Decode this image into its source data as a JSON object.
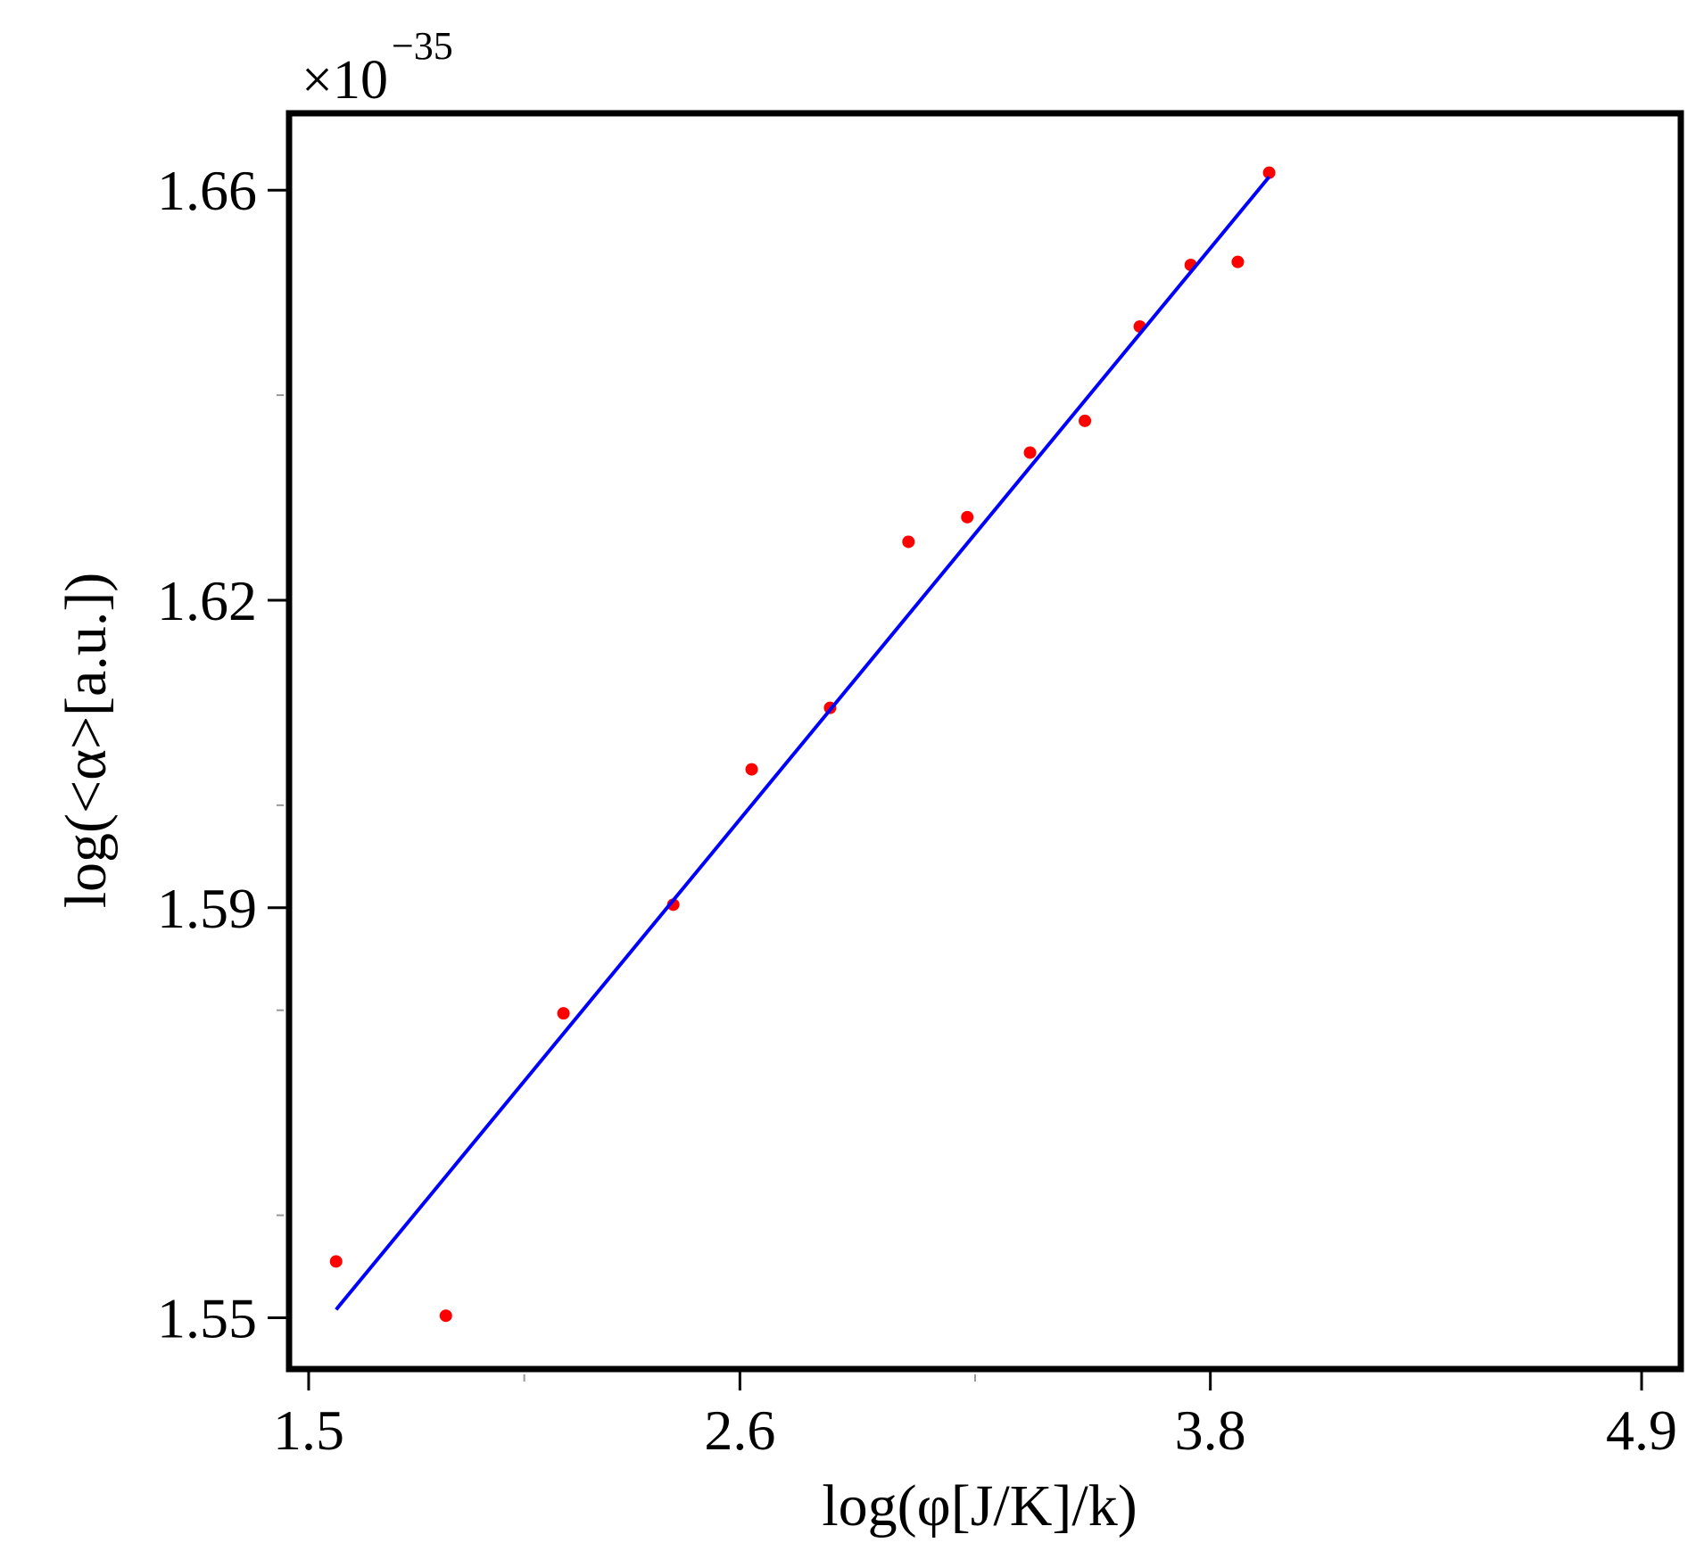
{
  "chart_data": {
    "type": "scatter",
    "title": "",
    "xlabel": "log(φ[J/K]/k)",
    "ylabel": "log(<α>[a.u.])",
    "y_multiplier": {
      "base": "×10",
      "exponent": "−35"
    },
    "xlim": [
      1.45,
      5.0
    ],
    "ylim": [
      1.545,
      1.6675
    ],
    "x_ticks": [
      {
        "value": 1.5,
        "label": "1.5"
      },
      {
        "value": 2.6,
        "label": "2.6"
      },
      {
        "value": 3.8,
        "label": "3.8"
      },
      {
        "value": 4.9,
        "label": "4.9"
      }
    ],
    "y_ticks": [
      {
        "value": 1.55,
        "label": "1.55"
      },
      {
        "value": 1.59,
        "label": "1.59"
      },
      {
        "value": 1.62,
        "label": "1.62"
      },
      {
        "value": 1.66,
        "label": "1.66"
      }
    ],
    "x_minor_ticks": [
      2.05,
      3.2
    ],
    "y_minor_ticks": [
      1.56,
      1.58,
      1.6,
      1.64
    ],
    "grid": false,
    "series": [
      {
        "type": "scatter",
        "color": "#ff0000",
        "points": [
          {
            "x": 1.57,
            "y": 1.5555
          },
          {
            "x": 1.85,
            "y": 1.5502
          },
          {
            "x": 2.15,
            "y": 1.5797
          },
          {
            "x": 2.43,
            "y": 1.5903
          },
          {
            "x": 2.63,
            "y": 1.6035
          },
          {
            "x": 2.83,
            "y": 1.6095
          },
          {
            "x": 3.03,
            "y": 1.6257
          },
          {
            "x": 3.18,
            "y": 1.6281
          },
          {
            "x": 3.34,
            "y": 1.6344
          },
          {
            "x": 3.48,
            "y": 1.6375
          },
          {
            "x": 3.62,
            "y": 1.6467
          },
          {
            "x": 3.75,
            "y": 1.6527
          },
          {
            "x": 3.87,
            "y": 1.653
          },
          {
            "x": 3.95,
            "y": 1.6617
          }
        ]
      },
      {
        "type": "line",
        "color": "#0000ff",
        "points": [
          {
            "x": 1.57,
            "y": 1.5508
          },
          {
            "x": 3.95,
            "y": 1.6613
          }
        ]
      }
    ]
  }
}
